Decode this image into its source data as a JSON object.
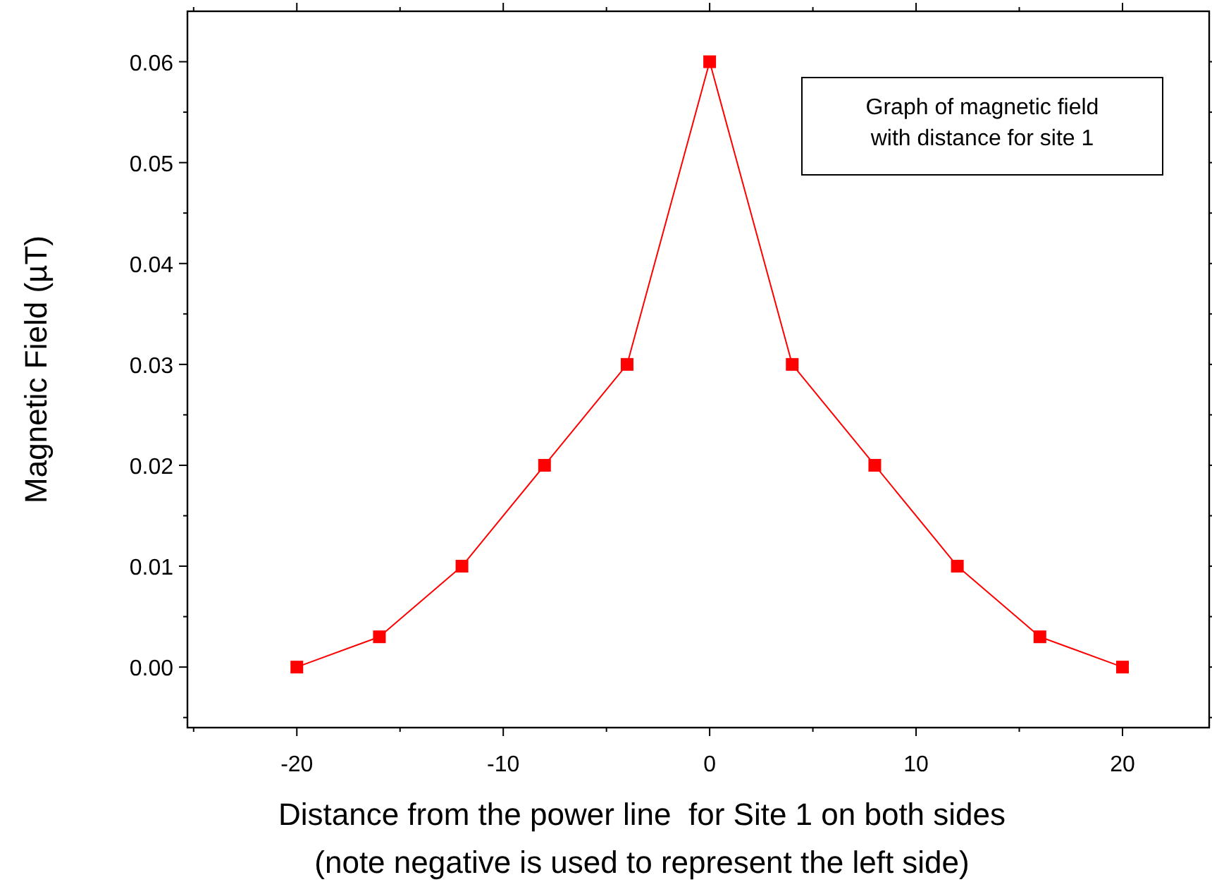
{
  "chart_data": {
    "type": "line",
    "xlabel": "Distance from the power line  for Site 1 on both sides\n(note negative is used to represent the left side)",
    "ylabel": "Magnetic Field (µT)",
    "x": [
      -20,
      -16,
      -12,
      -8,
      -4,
      0,
      4,
      8,
      12,
      16,
      20
    ],
    "series": [
      {
        "color": "#ff0000",
        "values": [
          0,
          0.003,
          0.01,
          0.02,
          0.03,
          0.06,
          0.03,
          0.02,
          0.01,
          0.003,
          0
        ]
      }
    ],
    "xlim": [
      -25.3,
      24.2
    ],
    "xticks": [
      {
        "value": -25,
        "label": null
      },
      -20,
      {
        "value": -15,
        "label": null
      },
      -10,
      {
        "value": -5,
        "label": null
      },
      0,
      {
        "value": 5,
        "label": null
      },
      10,
      {
        "value": 15,
        "label": null
      },
      20
    ],
    "ylim": [
      -0.006,
      0.065
    ],
    "yticks": [
      {
        "value": -0.005,
        "label": null
      },
      {
        "value": 0,
        "label": "0.00"
      },
      {
        "value": 0.005,
        "label": null
      },
      {
        "value": 0.01,
        "label": "0.01"
      },
      {
        "value": 0.015,
        "label": null
      },
      {
        "value": 0.02,
        "label": "0.02"
      },
      {
        "value": 0.025,
        "label": null
      },
      {
        "value": 0.03,
        "label": "0.03"
      },
      {
        "value": 0.035,
        "label": null
      },
      {
        "value": 0.04,
        "label": "0.04"
      },
      {
        "value": 0.045,
        "label": null
      },
      {
        "value": 0.05,
        "label": "0.05"
      },
      {
        "value": 0.055,
        "label": null
      },
      {
        "value": 0.06,
        "label": "0.06"
      }
    ],
    "annotations": [
      "Graph of magnetic field\nwith distance for site 1"
    ],
    "marker": "square",
    "line_style": "solid",
    "grid": false
  }
}
